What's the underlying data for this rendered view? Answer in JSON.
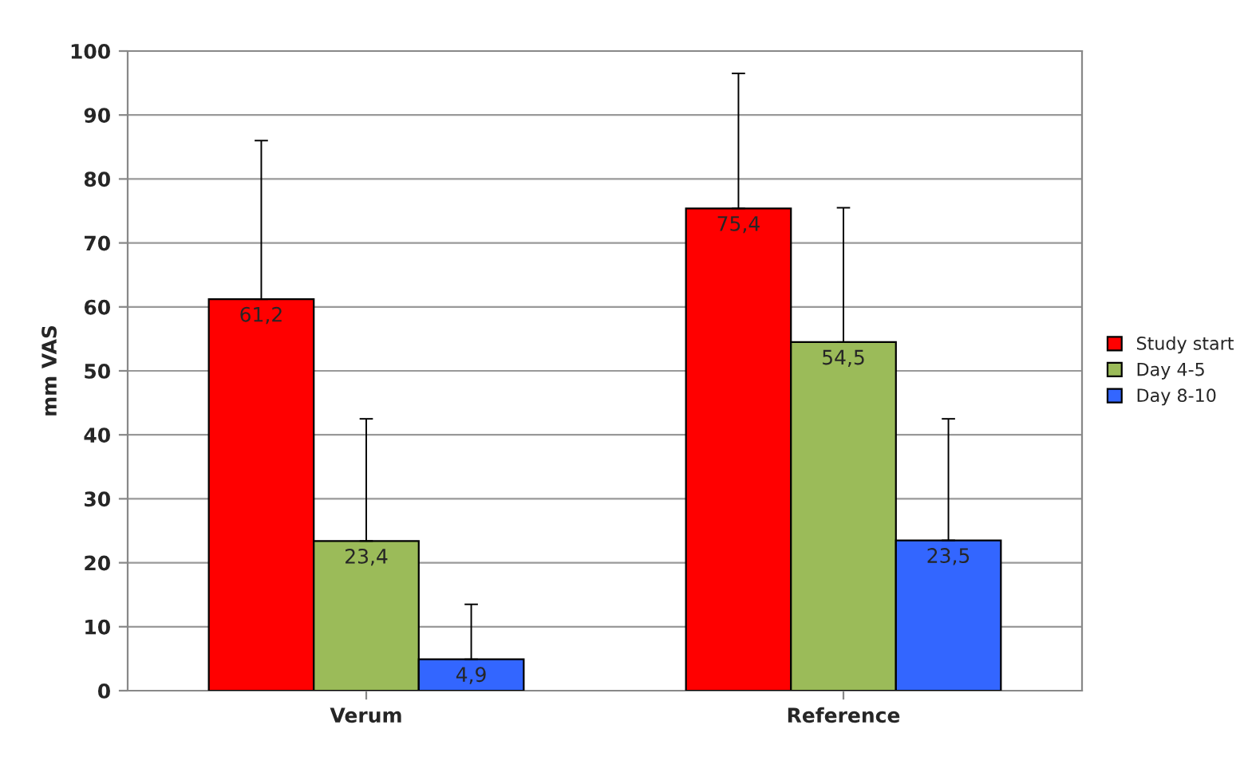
{
  "chart_data": {
    "type": "bar",
    "ylabel": "mm VAS",
    "categories": [
      "Verum",
      "Reference"
    ],
    "series": [
      {
        "name": "Study start",
        "color": "#ff0000",
        "values": [
          61.2,
          75.4
        ],
        "value_labels": [
          "61,2",
          "75,4"
        ],
        "errors": [
          [
            61.2,
            86
          ],
          [
            75.4,
            96.5
          ]
        ]
      },
      {
        "name": "Day 4-5",
        "color": "#9bbb59",
        "values": [
          23.4,
          54.5
        ],
        "value_labels": [
          "23,4",
          "54,5"
        ],
        "errors": [
          [
            23.4,
            42.5
          ],
          [
            54.5,
            75.5
          ]
        ]
      },
      {
        "name": "Day 8-10",
        "color": "#3366ff",
        "values": [
          4.9,
          23.5
        ],
        "value_labels": [
          "4,9",
          "23,5"
        ],
        "errors": [
          [
            4.9,
            13.5
          ],
          [
            23.5,
            42.5
          ]
        ]
      }
    ],
    "ylim": [
      0,
      100
    ],
    "yticks": [
      0,
      10,
      20,
      30,
      40,
      50,
      60,
      70,
      80,
      90,
      100
    ],
    "grid": "y",
    "legend": "right"
  }
}
